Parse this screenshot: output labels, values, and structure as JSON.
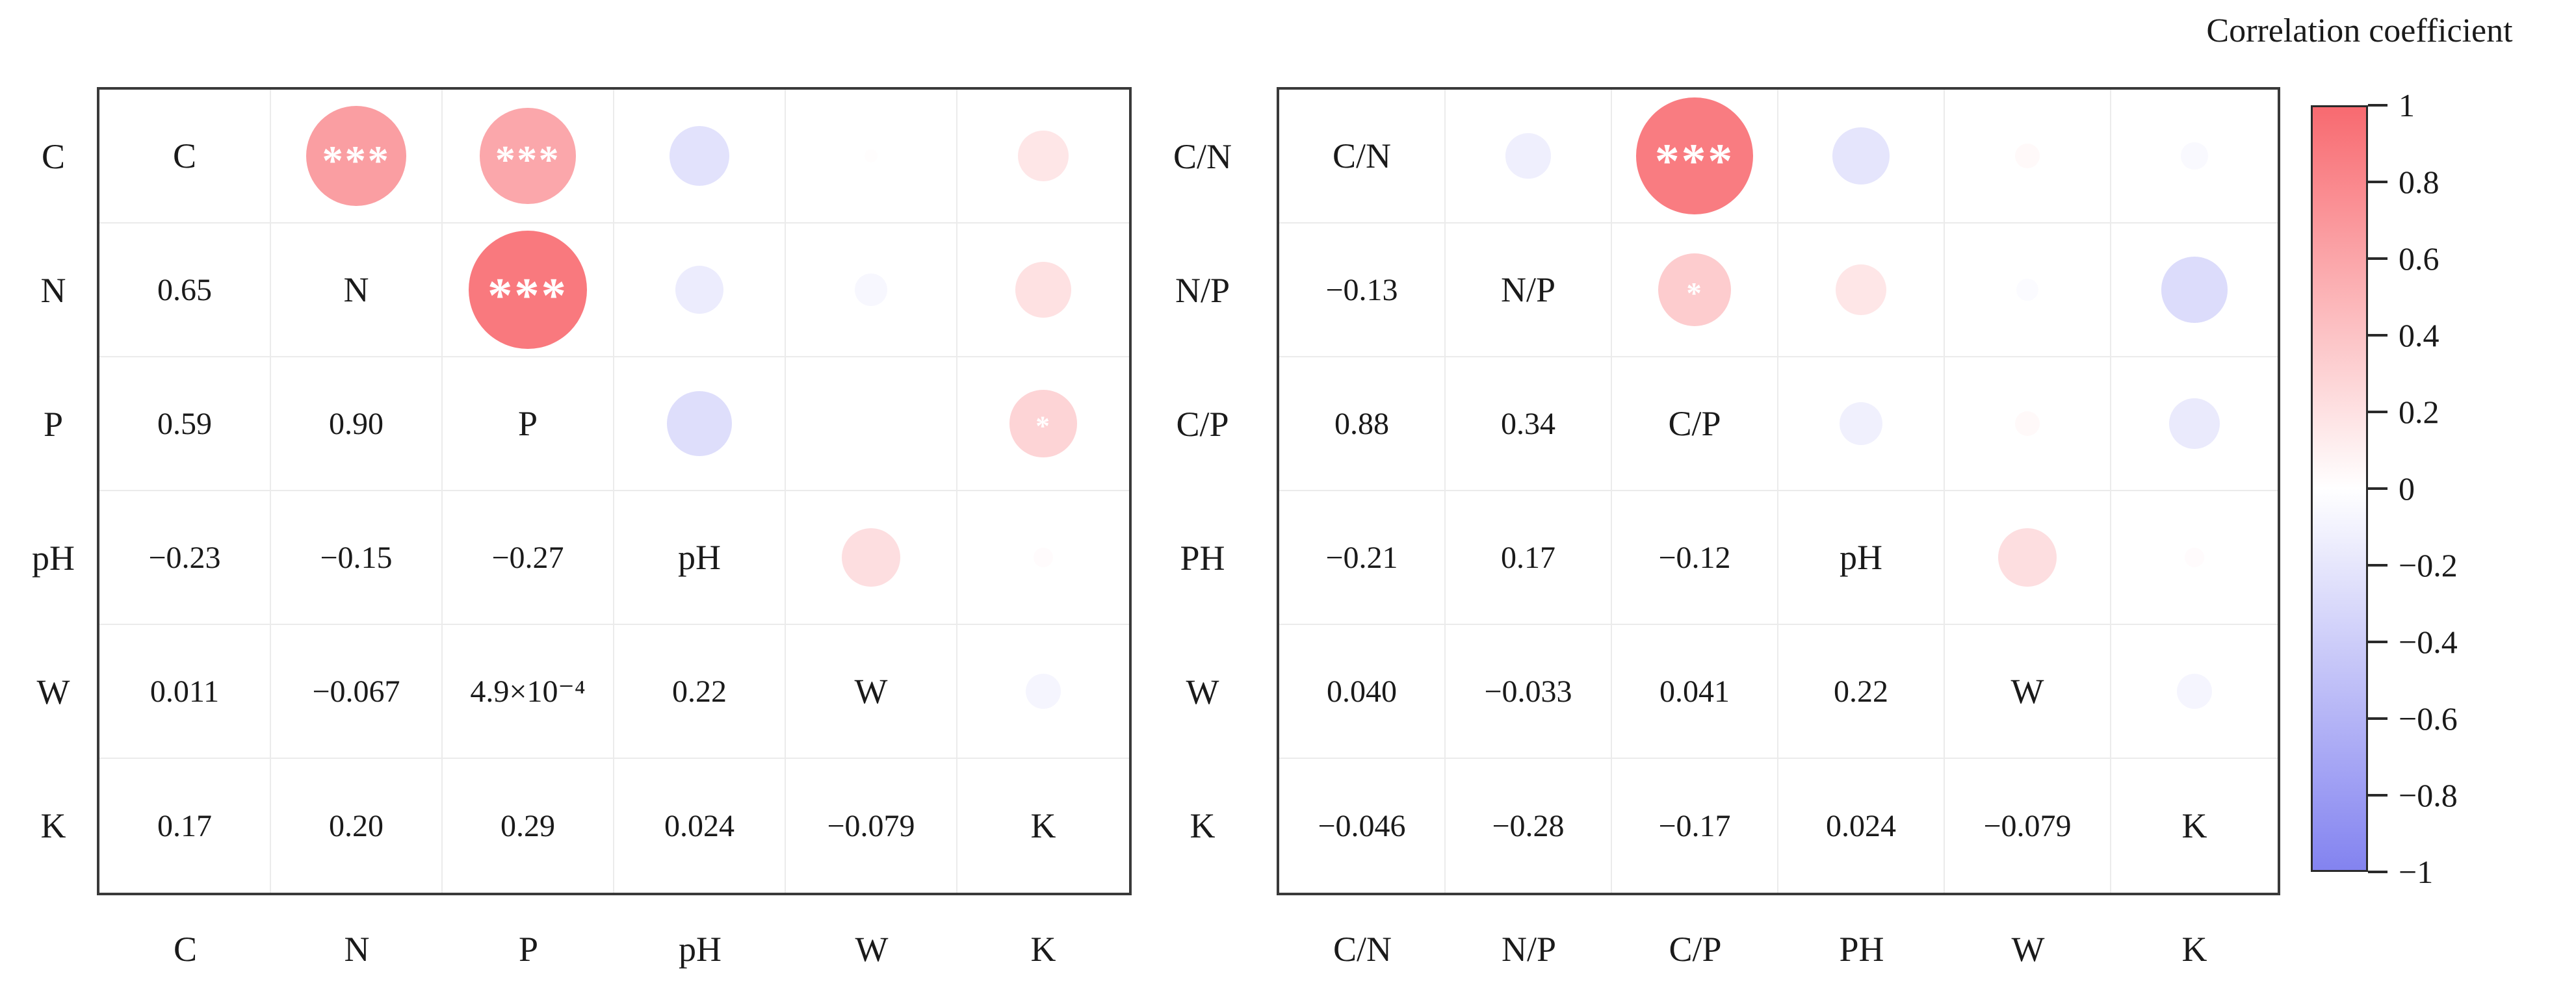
{
  "colorbar": {
    "title": "Correlation coefficient",
    "tick_labels": [
      "1",
      "0.8",
      "0.6",
      "0.4",
      "0.2",
      "0",
      "−0.2",
      "−0.4",
      "−0.6",
      "−0.8",
      "−1"
    ],
    "positive_color": "#f86a70",
    "zero_color": "#ffffff",
    "negative_color": "#8383f0",
    "range": [
      1,
      -1
    ]
  },
  "panels": [
    {
      "id": "elements",
      "row_labels": [
        "C",
        "N",
        "P",
        "pH",
        "W",
        "K"
      ],
      "column_labels": [
        "C",
        "N",
        "P",
        "pH",
        "W",
        "K"
      ],
      "diagonal_labels": [
        "C",
        "N",
        "P",
        "pH",
        "W",
        "K"
      ],
      "lower_triangle_text": [
        [],
        [
          "0.65"
        ],
        [
          "0.59",
          "0.90"
        ],
        [
          "−0.23",
          "−0.15",
          "−0.27"
        ],
        [
          "0.011",
          "−0.067",
          "4.9×10⁻⁴",
          "0.22"
        ],
        [
          "0.17",
          "0.20",
          "0.29",
          "0.024",
          "−0.079"
        ]
      ],
      "upper_triangle": [
        [
          {
            "col": 1,
            "r": 0.65,
            "stars": "***"
          },
          {
            "col": 2,
            "r": 0.59,
            "stars": "***"
          },
          {
            "col": 3,
            "r": -0.23
          },
          {
            "col": 4,
            "r": 0.011
          },
          {
            "col": 5,
            "r": 0.17
          }
        ],
        [
          {
            "col": 2,
            "r": 0.9,
            "stars": "***"
          },
          {
            "col": 3,
            "r": -0.15
          },
          {
            "col": 4,
            "r": -0.067
          },
          {
            "col": 5,
            "r": 0.2
          }
        ],
        [
          {
            "col": 3,
            "r": -0.27
          },
          {
            "col": 4,
            "r": 0.00049
          },
          {
            "col": 5,
            "r": 0.29,
            "stars": "*"
          }
        ],
        [
          {
            "col": 4,
            "r": 0.22
          },
          {
            "col": 5,
            "r": 0.024
          }
        ],
        [
          {
            "col": 5,
            "r": -0.079
          }
        ]
      ]
    },
    {
      "id": "ratios",
      "row_labels": [
        "C/N",
        "N/P",
        "C/P",
        "PH",
        "W",
        "K"
      ],
      "column_labels": [
        "C/N",
        "N/P",
        "C/P",
        "PH",
        "W",
        "K"
      ],
      "diagonal_labels": [
        "C/N",
        "N/P",
        "C/P",
        "pH",
        "W",
        "K"
      ],
      "lower_triangle_text": [
        [],
        [
          "−0.13"
        ],
        [
          "0.88",
          "0.34"
        ],
        [
          "−0.21",
          "0.17",
          "−0.12"
        ],
        [
          "0.040",
          "−0.033",
          "0.041",
          "0.22"
        ],
        [
          "−0.046",
          "−0.28",
          "−0.17",
          "0.024",
          "−0.079"
        ]
      ],
      "upper_triangle": [
        [
          {
            "col": 1,
            "r": -0.13
          },
          {
            "col": 2,
            "r": 0.88,
            "stars": "***"
          },
          {
            "col": 3,
            "r": -0.21
          },
          {
            "col": 4,
            "r": 0.04
          },
          {
            "col": 5,
            "r": -0.046
          }
        ],
        [
          {
            "col": 2,
            "r": 0.34,
            "stars": "*"
          },
          {
            "col": 3,
            "r": 0.17
          },
          {
            "col": 4,
            "r": -0.033
          },
          {
            "col": 5,
            "r": -0.28
          }
        ],
        [
          {
            "col": 3,
            "r": -0.12
          },
          {
            "col": 4,
            "r": 0.041
          },
          {
            "col": 5,
            "r": -0.17
          }
        ],
        [
          {
            "col": 4,
            "r": 0.22
          },
          {
            "col": 5,
            "r": 0.024
          }
        ],
        [
          {
            "col": 5,
            "r": -0.079
          }
        ]
      ]
    }
  ],
  "chart_data": [
    {
      "type": "heatmap",
      "subtype": "correlation-matrix",
      "title": "",
      "variables": [
        "C",
        "N",
        "P",
        "pH",
        "W",
        "K"
      ],
      "matrix": [
        [
          1,
          0.65,
          0.59,
          -0.23,
          0.011,
          0.17
        ],
        [
          0.65,
          1,
          0.9,
          -0.15,
          -0.067,
          0.2
        ],
        [
          0.59,
          0.9,
          1,
          -0.27,
          0.00049,
          0.29
        ],
        [
          -0.23,
          -0.15,
          -0.27,
          1,
          0.22,
          0.024
        ],
        [
          0.011,
          -0.067,
          0.00049,
          0.22,
          1,
          -0.079
        ],
        [
          0.17,
          0.2,
          0.29,
          0.024,
          -0.079,
          1
        ]
      ],
      "significance": [
        {
          "pair": [
            "C",
            "N"
          ],
          "stars": "***"
        },
        {
          "pair": [
            "C",
            "P"
          ],
          "stars": "***"
        },
        {
          "pair": [
            "N",
            "P"
          ],
          "stars": "***"
        },
        {
          "pair": [
            "P",
            "K"
          ],
          "stars": "*"
        }
      ],
      "legend_title": "Correlation coefficient",
      "color_range": [
        1,
        -1
      ],
      "layout": "lower-triangle numbers, upper-triangle area-scaled circles"
    },
    {
      "type": "heatmap",
      "subtype": "correlation-matrix",
      "title": "",
      "variables": [
        "C/N",
        "N/P",
        "C/P",
        "PH",
        "W",
        "K"
      ],
      "matrix": [
        [
          1,
          -0.13,
          0.88,
          -0.21,
          0.04,
          -0.046
        ],
        [
          -0.13,
          1,
          0.34,
          0.17,
          -0.033,
          -0.28
        ],
        [
          0.88,
          0.34,
          1,
          -0.12,
          0.041,
          -0.17
        ],
        [
          -0.21,
          0.17,
          -0.12,
          1,
          0.22,
          0.024
        ],
        [
          0.04,
          -0.033,
          0.041,
          0.22,
          1,
          -0.079
        ],
        [
          -0.046,
          -0.28,
          -0.17,
          0.024,
          -0.079,
          1
        ]
      ],
      "significance": [
        {
          "pair": [
            "C/N",
            "C/P"
          ],
          "stars": "***"
        },
        {
          "pair": [
            "N/P",
            "C/P"
          ],
          "stars": "*"
        }
      ],
      "legend_title": "Correlation coefficient",
      "color_range": [
        1,
        -1
      ],
      "layout": "lower-triangle numbers, upper-triangle area-scaled circles"
    }
  ]
}
